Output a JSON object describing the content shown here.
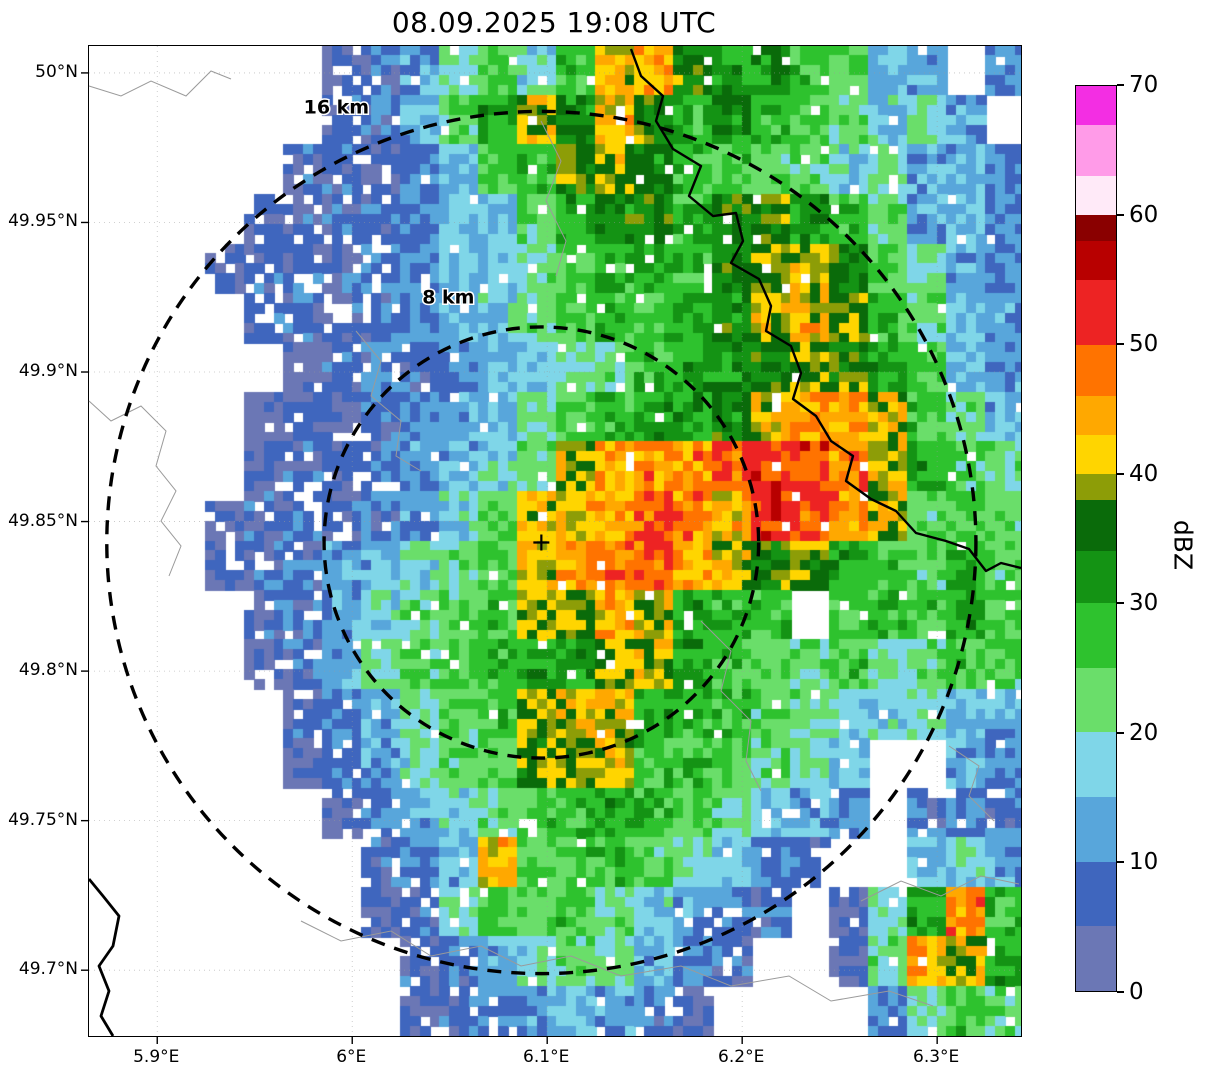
{
  "title": "08.09.2025 19:08 UTC",
  "chart_data": {
    "type": "heatmap",
    "title": "08.09.2025 19:08 UTC",
    "x_axis": {
      "range": [
        5.865,
        6.343
      ],
      "ticks": [
        {
          "label": "5.9°E",
          "lon": 5.9
        },
        {
          "label": "6°E",
          "lon": 6.0
        },
        {
          "label": "6.1°E",
          "lon": 6.1
        },
        {
          "label": "6.2°E",
          "lon": 6.2
        },
        {
          "label": "6.3°E",
          "lon": 6.3
        }
      ]
    },
    "y_axis": {
      "range": [
        49.678,
        50.009
      ],
      "ticks": [
        {
          "label": "50°N",
          "lat": 50.0
        },
        {
          "label": "49.95°N",
          "lat": 49.95
        },
        {
          "label": "49.9°N",
          "lat": 49.9
        },
        {
          "label": "49.85°N",
          "lat": 49.85
        },
        {
          "label": "49.8°N",
          "lat": 49.8
        },
        {
          "label": "49.75°N",
          "lat": 49.75
        },
        {
          "label": "49.7°N",
          "lat": 49.7
        }
      ]
    },
    "colorbar": {
      "label": "dBZ",
      "range": [
        0,
        70
      ],
      "ticks": [
        0,
        10,
        20,
        30,
        40,
        50,
        60,
        70
      ],
      "segments": [
        {
          "from": 0,
          "to": 5,
          "color": "#6b77b5"
        },
        {
          "from": 5,
          "to": 10,
          "color": "#3f66be"
        },
        {
          "from": 10,
          "to": 15,
          "color": "#58a6db"
        },
        {
          "from": 15,
          "to": 20,
          "color": "#7fd6e8"
        },
        {
          "from": 20,
          "to": 25,
          "color": "#6ade6a"
        },
        {
          "from": 25,
          "to": 30,
          "color": "#2ec22e"
        },
        {
          "from": 30,
          "to": 34,
          "color": "#149314"
        },
        {
          "from": 34,
          "to": 38,
          "color": "#0a6b0a"
        },
        {
          "from": 38,
          "to": 40,
          "color": "#8d9d07"
        },
        {
          "from": 40,
          "to": 43,
          "color": "#ffd500"
        },
        {
          "from": 43,
          "to": 46,
          "color": "#ffa800"
        },
        {
          "from": 46,
          "to": 50,
          "color": "#ff7300"
        },
        {
          "from": 50,
          "to": 55,
          "color": "#ed2323"
        },
        {
          "from": 55,
          "to": 58,
          "color": "#b80000"
        },
        {
          "from": 58,
          "to": 60,
          "color": "#8a0000"
        },
        {
          "from": 60,
          "to": 63,
          "color": "#ffeaf8"
        },
        {
          "from": 63,
          "to": 67,
          "color": "#ff9be8"
        },
        {
          "from": 67,
          "to": 70,
          "color": "#f32ee3"
        }
      ]
    },
    "range_rings": {
      "center": {
        "lon": 6.097,
        "lat": 49.843
      },
      "marker": "+",
      "rings": [
        {
          "radius_km": 8,
          "label": "8 km"
        },
        {
          "radius_km": 16,
          "label": "16 km"
        }
      ]
    },
    "grid": {
      "ncols": 24,
      "nrows": 20,
      "lon_start": 5.865,
      "dlon": 0.02,
      "lat_start": 50.009,
      "dlat": -0.01655,
      "no_data": -10,
      "values_dbz": [
        [
          -10,
          -10,
          -10,
          -10,
          -10,
          -10,
          5,
          7,
          12,
          20,
          25,
          18,
          28,
          42,
          44,
          36,
          30,
          33,
          26,
          24,
          15,
          12,
          -10,
          10
        ],
        [
          -10,
          -10,
          -10,
          -10,
          -10,
          -10,
          6,
          8,
          14,
          24,
          30,
          40,
          34,
          44,
          36,
          28,
          32,
          28,
          25,
          22,
          16,
          20,
          12,
          -10
        ],
        [
          -10,
          -10,
          -10,
          -10,
          -10,
          6,
          8,
          6,
          10,
          15,
          25,
          28,
          36,
          40,
          34,
          28,
          26,
          24,
          22,
          16,
          20,
          12,
          14,
          10
        ],
        [
          -10,
          -10,
          -10,
          -10,
          5,
          7,
          6,
          8,
          10,
          14,
          16,
          24,
          30,
          34,
          34,
          28,
          35,
          36,
          32,
          28,
          22,
          12,
          14,
          10
        ],
        [
          -10,
          -10,
          -10,
          5,
          7,
          8,
          6,
          9,
          11,
          15,
          16,
          22,
          26,
          28,
          30,
          26,
          34,
          38,
          40,
          35,
          25,
          20,
          13,
          10
        ],
        [
          -10,
          -10,
          -10,
          -10,
          6,
          8,
          7,
          8,
          10,
          14,
          16,
          22,
          25,
          28,
          26,
          30,
          34,
          40,
          42,
          38,
          28,
          22,
          15,
          11
        ],
        [
          -10,
          -10,
          -10,
          -10,
          -10,
          2,
          7,
          9,
          8,
          10,
          14,
          16,
          20,
          22,
          28,
          30,
          33,
          35,
          38,
          36,
          30,
          24,
          15,
          12
        ],
        [
          -10,
          -10,
          -10,
          -10,
          4,
          6,
          5,
          8,
          10,
          13,
          15,
          20,
          24,
          28,
          32,
          30,
          34,
          42,
          45,
          44,
          40,
          26,
          22,
          14
        ],
        [
          -10,
          -10,
          -10,
          -10,
          5,
          7,
          6,
          9,
          11,
          14,
          18,
          22,
          40,
          44,
          46,
          46,
          50,
          52,
          51,
          47,
          41,
          30,
          24,
          22
        ],
        [
          -10,
          -10,
          -10,
          4,
          6,
          8,
          6,
          9,
          12,
          18,
          24,
          41,
          42,
          45,
          50,
          46,
          42,
          52,
          50,
          46,
          40,
          24,
          26,
          22
        ],
        [
          -10,
          -10,
          -10,
          5,
          7,
          9,
          12,
          14,
          18,
          22,
          26,
          42,
          45,
          47,
          50,
          44,
          40,
          36,
          38,
          30,
          26,
          24,
          30,
          24
        ],
        [
          -10,
          -10,
          -10,
          -10,
          6,
          8,
          12,
          18,
          22,
          24,
          26,
          40,
          39,
          44,
          40,
          30,
          28,
          26,
          -10,
          25,
          28,
          26,
          30,
          26
        ],
        [
          -10,
          -10,
          -10,
          -10,
          5,
          8,
          13,
          20,
          24,
          26,
          28,
          30,
          33,
          38,
          41,
          30,
          26,
          24,
          22,
          26,
          20,
          22,
          26,
          24
        ],
        [
          -10,
          -10,
          -10,
          -10,
          -10,
          6,
          10,
          14,
          20,
          24,
          26,
          38,
          41,
          42,
          30,
          28,
          26,
          24,
          22,
          18,
          16,
          20,
          15,
          12
        ],
        [
          -10,
          -10,
          -10,
          -10,
          -10,
          4,
          8,
          12,
          18,
          22,
          25,
          38,
          39,
          40,
          28,
          26,
          24,
          22,
          20,
          15,
          -10,
          -10,
          13,
          10
        ],
        [
          -10,
          -10,
          -10,
          -10,
          -10,
          -10,
          5,
          9,
          13,
          18,
          22,
          26,
          28,
          30,
          28,
          25,
          22,
          16,
          13,
          10,
          -10,
          8,
          10,
          8
        ],
        [
          -10,
          -10,
          -10,
          -10,
          -10,
          -10,
          -10,
          6,
          10,
          14,
          42,
          24,
          26,
          28,
          24,
          20,
          15,
          10,
          8,
          -10,
          -10,
          14,
          18,
          12
        ],
        [
          -10,
          -10,
          -10,
          -10,
          -10,
          -10,
          -10,
          5,
          8,
          20,
          25,
          24,
          26,
          22,
          16,
          13,
          10,
          8,
          -10,
          5,
          20,
          30,
          46,
          28
        ],
        [
          -10,
          -10,
          -10,
          -10,
          -10,
          -10,
          -10,
          -10,
          6,
          9,
          13,
          18,
          22,
          20,
          14,
          10,
          7,
          -10,
          -10,
          5,
          22,
          44,
          40,
          30
        ],
        [
          -10,
          -10,
          -10,
          -10,
          -10,
          -10,
          -10,
          -10,
          5,
          7,
          9,
          12,
          16,
          13,
          9,
          6,
          -10,
          -10,
          -10,
          -10,
          10,
          20,
          26,
          22
        ]
      ]
    }
  }
}
